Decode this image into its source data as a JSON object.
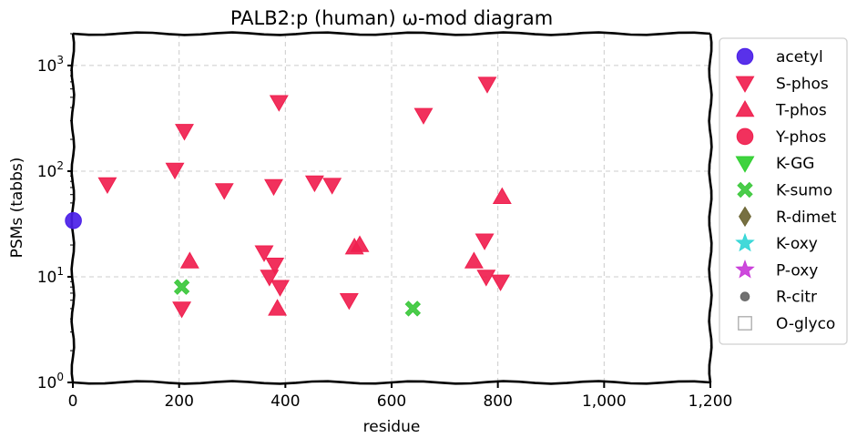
{
  "chart_data": {
    "type": "scatter",
    "title": "PALB2:p (human) ω-mod diagram",
    "xlabel": "residue",
    "ylabel": "PSMs (tabbs)",
    "xlim": [
      0,
      1200
    ],
    "ylim": [
      1,
      2000
    ],
    "yscale": "log",
    "x_ticks": [
      0,
      200,
      400,
      600,
      800,
      1000,
      1200
    ],
    "x_tick_labels": [
      "0",
      "200",
      "400",
      "600",
      "800",
      "1,000",
      "1,200"
    ],
    "y_ticks": [
      1,
      10,
      100,
      1000
    ],
    "grid": true,
    "legend_position": "right-outside",
    "series": [
      {
        "name": "acetyl",
        "marker": "circle",
        "color": "#4b1fe8",
        "points": [
          [
            1,
            34
          ]
        ]
      },
      {
        "name": "S-phos",
        "marker": "triangle-down",
        "color": "#f0204f",
        "points": [
          [
            65,
            75
          ],
          [
            192,
            103
          ],
          [
            205,
            5
          ],
          [
            210,
            240
          ],
          [
            285,
            66
          ],
          [
            360,
            17
          ],
          [
            370,
            10
          ],
          [
            378,
            72
          ],
          [
            380,
            13
          ],
          [
            388,
            450
          ],
          [
            390,
            8
          ],
          [
            455,
            78
          ],
          [
            488,
            74
          ],
          [
            520,
            6
          ],
          [
            660,
            340
          ],
          [
            775,
            22
          ],
          [
            778,
            10
          ],
          [
            780,
            670
          ],
          [
            805,
            9
          ]
        ]
      },
      {
        "name": "T-phos",
        "marker": "triangle-up",
        "color": "#f0204f",
        "points": [
          [
            220,
            14
          ],
          [
            385,
            5
          ],
          [
            530,
            19
          ],
          [
            540,
            20
          ],
          [
            755,
            14
          ],
          [
            808,
            57
          ]
        ]
      },
      {
        "name": "Y-phos",
        "marker": "circle",
        "color": "#f0204f",
        "points": []
      },
      {
        "name": "K-GG",
        "marker": "triangle-down",
        "color": "#2fcf2f",
        "points": []
      },
      {
        "name": "K-sumo",
        "marker": "x",
        "color": "#3cc83c",
        "points": [
          [
            205,
            8
          ],
          [
            640,
            5
          ]
        ]
      },
      {
        "name": "R-dimet",
        "marker": "diamond",
        "color": "#6b6432",
        "points": []
      },
      {
        "name": "K-oxy",
        "marker": "star",
        "color": "#33d6d6",
        "points": []
      },
      {
        "name": "P-oxy",
        "marker": "star",
        "color": "#c93bd9",
        "points": []
      },
      {
        "name": "R-citr",
        "marker": "small-circle",
        "color": "#666666",
        "points": []
      },
      {
        "name": "O-glyco",
        "marker": "open-square",
        "color": "#aaaaaa",
        "points": []
      }
    ]
  }
}
